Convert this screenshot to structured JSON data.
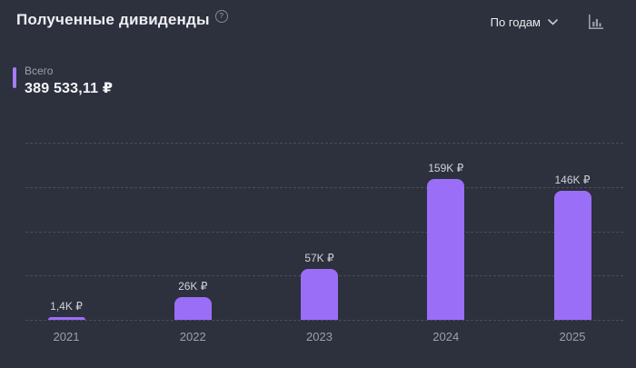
{
  "header": {
    "title": "Полученные дивиденды",
    "help_icon": "?",
    "group_by_label": "По годам",
    "chart_icon": "bar-chart-icon",
    "icon_color": "#9aa0ab"
  },
  "summary": {
    "label": "Всего",
    "value": "389 533,11 ₽",
    "accent_color": "#a57cf2"
  },
  "chart_data": {
    "type": "bar",
    "title": "Полученные дивиденды",
    "categories": [
      "2021",
      "2022",
      "2023",
      "2024",
      "2025"
    ],
    "values": [
      1400,
      26000,
      57000,
      159000,
      146000
    ],
    "value_labels": [
      "1,4K ₽",
      "26K ₽",
      "57K ₽",
      "159K ₽",
      "146K ₽"
    ],
    "currency": "₽",
    "xlabel": "",
    "ylabel": "",
    "ylim": [
      0,
      200000
    ],
    "gridline_values": [
      0,
      50000,
      100000,
      150000,
      200000
    ],
    "grid": "horizontal-dashed",
    "legend_position": "none",
    "bar_color": "#9b6ef7",
    "grid_color": "#4a4e59"
  }
}
